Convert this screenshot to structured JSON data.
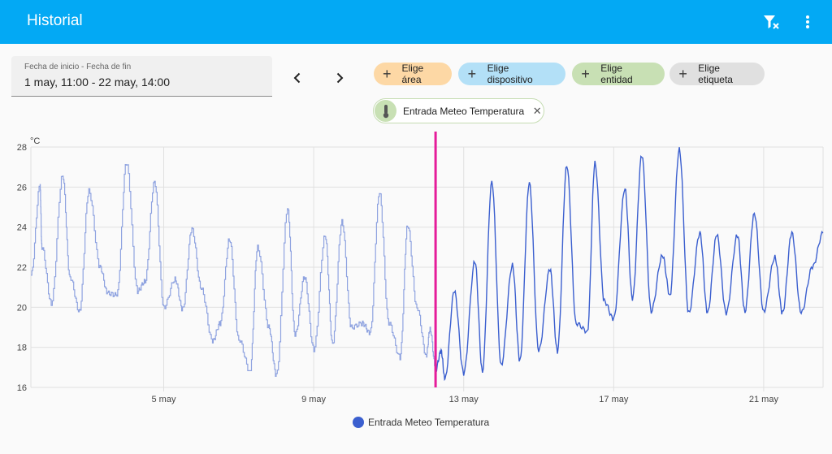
{
  "app_bar": {
    "title": "Historial",
    "actions": [
      "filter-remove-icon",
      "more-vert-icon"
    ],
    "color": "#03a9f4"
  },
  "date_picker": {
    "label": "Fecha de inicio - Fecha de fin",
    "value": "1 may, 11:00 - 22 may, 14:00"
  },
  "nav": {
    "prev_icon": "chevron-left-icon",
    "next_icon": "chevron-right-icon"
  },
  "targets": {
    "chips": [
      {
        "label": "Elige área",
        "color": "#fdd8a5"
      },
      {
        "label": "Elige dispositivo",
        "color": "#b3e0f7"
      },
      {
        "label": "Elige entidad",
        "color": "#c8e0b4"
      },
      {
        "label": "Elige etiqueta",
        "color": "#e0e0e0"
      }
    ],
    "selected_entity": {
      "label": "Entrada Meteo Temperatura",
      "icon": "thermometer-icon"
    }
  },
  "chart_data": {
    "type": "line",
    "ylabel": "°C",
    "ylim": [
      16,
      28
    ],
    "yticks": [
      "28",
      "26",
      "24",
      "22",
      "20",
      "18",
      "16"
    ],
    "xticks": [
      "5 may",
      "9 may",
      "13 may",
      "17 may",
      "21 may"
    ],
    "xtick_days": [
      5,
      9,
      13,
      17,
      21
    ],
    "xlim": [
      1.458,
      22.583
    ],
    "now_marker_day": 12.25,
    "now_marker_color": "#e51c9a",
    "series": [
      {
        "name": "Entrada Meteo Temperatura",
        "color": "#3b5fcf",
        "x": [
          1.46,
          1.7,
          1.75,
          2.0,
          2.3,
          2.5,
          2.75,
          3.0,
          3.3,
          3.5,
          3.75,
          4.0,
          4.3,
          4.5,
          4.75,
          5.0,
          5.3,
          5.5,
          5.75,
          6.0,
          6.3,
          6.5,
          6.75,
          7.0,
          7.3,
          7.5,
          7.8,
          8.0,
          8.3,
          8.5,
          8.75,
          9.0,
          9.3,
          9.5,
          9.75,
          10.0,
          10.3,
          10.5,
          10.75,
          11.0,
          11.3,
          11.5,
          11.75,
          12.0,
          12.1,
          12.25,
          12.4,
          12.5,
          12.75,
          13.0,
          13.3,
          13.5,
          13.75,
          14.0,
          14.3,
          14.5,
          14.75,
          15.0,
          15.3,
          15.5,
          15.75,
          16.0,
          16.3,
          16.5,
          16.75,
          17.0,
          17.3,
          17.5,
          17.75,
          18.0,
          18.3,
          18.5,
          18.75,
          19.0,
          19.3,
          19.5,
          19.75,
          20.0,
          20.3,
          20.5,
          20.75,
          21.0,
          21.3,
          21.5,
          21.75,
          22.0,
          22.3,
          22.58
        ],
        "y": [
          21.6,
          26.1,
          23.0,
          20.2,
          26.6,
          21.5,
          19.8,
          25.8,
          22.0,
          20.7,
          20.6,
          27.2,
          20.8,
          21.3,
          26.3,
          20.0,
          21.4,
          19.9,
          23.9,
          20.9,
          18.3,
          19.2,
          23.4,
          18.4,
          16.8,
          23.0,
          19.0,
          16.6,
          24.9,
          18.6,
          21.5,
          17.9,
          23.6,
          18.2,
          24.3,
          19.0,
          19.2,
          18.7,
          25.7,
          19.2,
          17.5,
          24.1,
          20.0,
          17.6,
          18.9,
          16.9,
          17.8,
          16.4,
          20.8,
          16.7,
          22.3,
          16.8,
          26.3,
          17.1,
          22.1,
          17.3,
          26.2,
          17.8,
          21.9,
          17.8,
          27.1,
          19.2,
          18.8,
          27.2,
          20.3,
          19.4,
          25.9,
          20.4,
          27.6,
          19.8,
          22.6,
          20.6,
          27.9,
          19.7,
          23.7,
          19.7,
          23.6,
          19.7,
          23.6,
          19.8,
          24.7,
          19.8,
          22.5,
          19.7,
          23.7,
          19.7,
          22.0,
          23.7
        ]
      }
    ],
    "legend_position": "bottom-center",
    "grid": true
  }
}
